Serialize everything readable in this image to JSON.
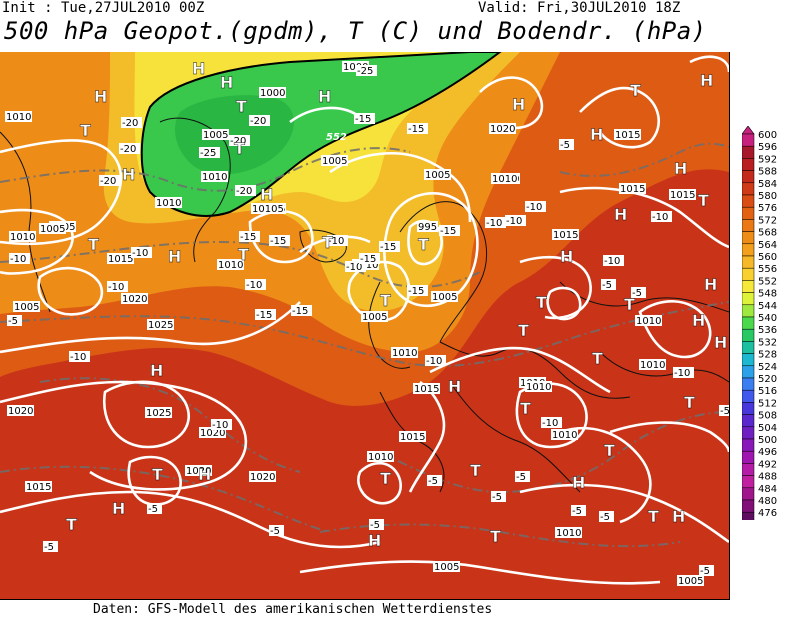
{
  "header": {
    "init": "Init : Tue,27JUL2010 00Z",
    "valid": "Valid: Fri,30JUL2010 18Z",
    "title": "500 hPa Geopot.(gpdm), T (C) und Bodendr. (hPa)"
  },
  "footer": "Daten: GFS-Modell des amerikanischen Wetterdienstes",
  "legend": {
    "values": [
      "600",
      "596",
      "592",
      "588",
      "584",
      "580",
      "576",
      "572",
      "568",
      "564",
      "560",
      "556",
      "552",
      "548",
      "544",
      "540",
      "536",
      "532",
      "528",
      "524",
      "520",
      "516",
      "512",
      "508",
      "504",
      "500",
      "496",
      "492",
      "488",
      "484",
      "480",
      "476"
    ],
    "colors": [
      "#c8207e",
      "#a8182c",
      "#b81e22",
      "#c32a1c",
      "#cf3a18",
      "#d94e14",
      "#e26214",
      "#ea7814",
      "#ee8c18",
      "#f2a01e",
      "#f6b828",
      "#f8d032",
      "#f6e83a",
      "#dff23a",
      "#9ee840",
      "#4cd84c",
      "#28c864",
      "#1cc0a0",
      "#1cb8d0",
      "#2ca0e8",
      "#3a7ef0",
      "#4058ec",
      "#4838dc",
      "#5a28cc",
      "#7020c0",
      "#8818b8",
      "#a016b0",
      "#b41ca8",
      "#c020a0",
      "#a0148c",
      "#801078",
      "#600c60"
    ]
  },
  "map": {
    "colors": {
      "outer": "#c93318",
      "mid": "#de5b14",
      "orange": "#ee8c18",
      "yellow": "#f3bd2a",
      "lightyellow": "#f6e23a",
      "green": "#39c84c",
      "darkgreen": "#1fa83c"
    },
    "pressure_labels": [
      "1000",
      "1000",
      "1005",
      "1005",
      "1010",
      "1010",
      "1005",
      "1005",
      "1010",
      "1010",
      "1015",
      "1010",
      "1015",
      "1005",
      "1010",
      "1010",
      "1005",
      "995",
      "1005",
      "1010",
      "1015",
      "1020",
      "1015",
      "1010",
      "1015",
      "1015",
      "1015",
      "1010",
      "1010",
      "1015",
      "1020",
      "1025",
      "1020",
      "1025",
      "1020",
      "1020",
      "1020",
      "1015",
      "1010",
      "1010",
      "1010",
      "1005",
      "1005",
      "1010",
      "1010",
      "1010",
      "1005",
      "10105"
    ],
    "temp_labels": [
      "-25",
      "-20",
      "-20",
      "-20",
      "-25",
      "-20",
      "-20",
      "-15",
      "-20",
      "-15",
      "-15",
      "-15",
      "-15",
      "-10",
      "-10",
      "-10",
      "-10",
      "-10",
      "-5",
      "-15",
      "-15",
      "-10",
      "-10",
      "-10",
      "-15",
      "-10",
      "-10",
      "-10",
      "-5",
      "-10",
      "-5",
      "-5",
      "-5",
      "-5",
      "-5",
      "-5",
      "-5",
      "-5",
      "-5",
      "-5",
      "-5",
      "-5",
      "-5",
      "-10",
      "-10",
      "-10",
      "-10",
      "-15",
      "-15"
    ],
    "geo_label": "552",
    "H": "H",
    "T": "T"
  }
}
